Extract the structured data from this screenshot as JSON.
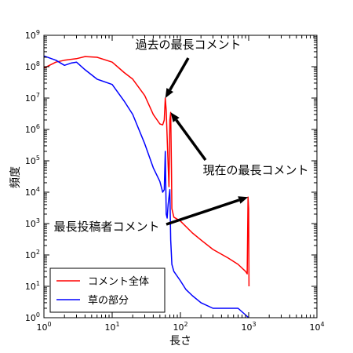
{
  "chart_data": {
    "type": "line",
    "xlabel": "長さ",
    "ylabel": "頻度",
    "xscale": "log",
    "yscale": "log",
    "xlim": [
      1,
      10000
    ],
    "ylim": [
      1,
      1000000000
    ],
    "x_ticks": [
      {
        "base": "10",
        "exp": "0"
      },
      {
        "base": "10",
        "exp": "1"
      },
      {
        "base": "10",
        "exp": "2"
      },
      {
        "base": "10",
        "exp": "3"
      },
      {
        "base": "10",
        "exp": "4"
      }
    ],
    "y_ticks": [
      {
        "base": "10",
        "exp": "0"
      },
      {
        "base": "10",
        "exp": "1"
      },
      {
        "base": "10",
        "exp": "2"
      },
      {
        "base": "10",
        "exp": "3"
      },
      {
        "base": "10",
        "exp": "4"
      },
      {
        "base": "10",
        "exp": "5"
      },
      {
        "base": "10",
        "exp": "6"
      },
      {
        "base": "10",
        "exp": "7"
      },
      {
        "base": "10",
        "exp": "8"
      },
      {
        "base": "10",
        "exp": "9"
      }
    ],
    "legend_position": "bottom-left",
    "series": [
      {
        "name": "コメント全体",
        "color": "#ff0000",
        "points": [
          [
            1,
            90000000
          ],
          [
            1.5,
            140000000
          ],
          [
            2,
            160000000
          ],
          [
            3,
            180000000
          ],
          [
            4,
            210000000
          ],
          [
            6,
            200000000
          ],
          [
            10,
            140000000
          ],
          [
            15,
            65000000
          ],
          [
            20,
            40000000
          ],
          [
            30,
            12000000
          ],
          [
            40,
            3000000
          ],
          [
            50,
            1500000
          ],
          [
            55,
            1400000
          ],
          [
            58,
            2000000
          ],
          [
            60,
            10000000
          ],
          [
            62,
            4000000
          ],
          [
            65,
            200000
          ],
          [
            68,
            15000
          ],
          [
            70,
            2000000
          ],
          [
            72,
            3500000
          ],
          [
            74,
            50000
          ],
          [
            75,
            3000
          ],
          [
            80,
            1600
          ],
          [
            100,
            1200
          ],
          [
            150,
            500
          ],
          [
            200,
            300
          ],
          [
            300,
            150
          ],
          [
            500,
            80
          ],
          [
            700,
            50
          ],
          [
            900,
            30
          ],
          [
            950,
            25
          ],
          [
            980,
            7000
          ],
          [
            1000,
            3000
          ],
          [
            1010,
            10
          ]
        ]
      },
      {
        "name": "草の部分",
        "color": "#0000ff",
        "points": [
          [
            1,
            220000000
          ],
          [
            1.5,
            160000000
          ],
          [
            2,
            110000000
          ],
          [
            2.5,
            130000000
          ],
          [
            3,
            140000000
          ],
          [
            4,
            80000000
          ],
          [
            6,
            40000000
          ],
          [
            10,
            27000000
          ],
          [
            15,
            8000000
          ],
          [
            20,
            3000000
          ],
          [
            30,
            350000
          ],
          [
            40,
            60000
          ],
          [
            50,
            22000
          ],
          [
            55,
            10000
          ],
          [
            58,
            12000
          ],
          [
            60,
            200000
          ],
          [
            62,
            2000
          ],
          [
            64,
            1500
          ],
          [
            66,
            4000
          ],
          [
            70,
            12000
          ],
          [
            72,
            300
          ],
          [
            75,
            50
          ],
          [
            80,
            30
          ],
          [
            100,
            15
          ],
          [
            120,
            8
          ],
          [
            150,
            5
          ],
          [
            200,
            3
          ],
          [
            300,
            2
          ],
          [
            500,
            2
          ],
          [
            700,
            2
          ],
          [
            1000,
            1
          ]
        ]
      }
    ],
    "annotations": [
      {
        "text": "過去の最長コメント",
        "x": 60,
        "y": 10000000
      },
      {
        "text": "現在の最長コメント",
        "x": 72,
        "y": 3500000
      },
      {
        "text": "最長投稿者コメント",
        "x": 980,
        "y": 7000
      }
    ]
  }
}
